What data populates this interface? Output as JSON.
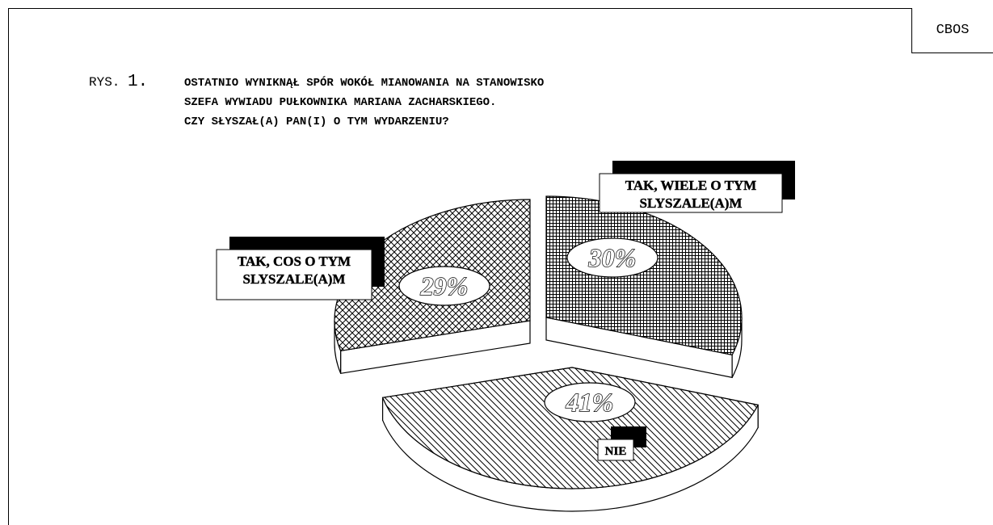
{
  "source": "CBOS",
  "title": {
    "prefix": "RYS.",
    "number": "1.",
    "lines": [
      "OSTATNIO WYNIKNĄŁ SPÓR WOKÓŁ MIANOWANIA NA STANOWISKO",
      "SZEFA WYWIADU PUŁKOWNIKA MARIANA ZACHARSKIEGO.",
      "CZY SŁYSZAŁ(A) PAN(I) O TYM WYDARZENIU?"
    ]
  },
  "chart_data": {
    "type": "pie",
    "style": "3d-exploded",
    "title": "OSTATNIO WYNIKNĄŁ SPÓR WOKÓŁ MIANOWANIA NA STANOWISKO SZEFA WYWIADU PUŁKOWNIKA MARIANA ZACHARSKIEGO. CZY SŁYSZAŁ(A) PAN(I) O TYM WYDARZENIU?",
    "slices": [
      {
        "label": "TAK, WIELE O TYM SLYSZALE(A)M",
        "value": 30,
        "value_label": "30%",
        "pattern": "grid"
      },
      {
        "label": "NIE",
        "value": 41,
        "value_label": "41%",
        "pattern": "diagonal"
      },
      {
        "label": "TAK, COS O TYM SLYSZALE(A)M",
        "value": 29,
        "value_label": "29%",
        "pattern": "crosshatch"
      }
    ]
  }
}
